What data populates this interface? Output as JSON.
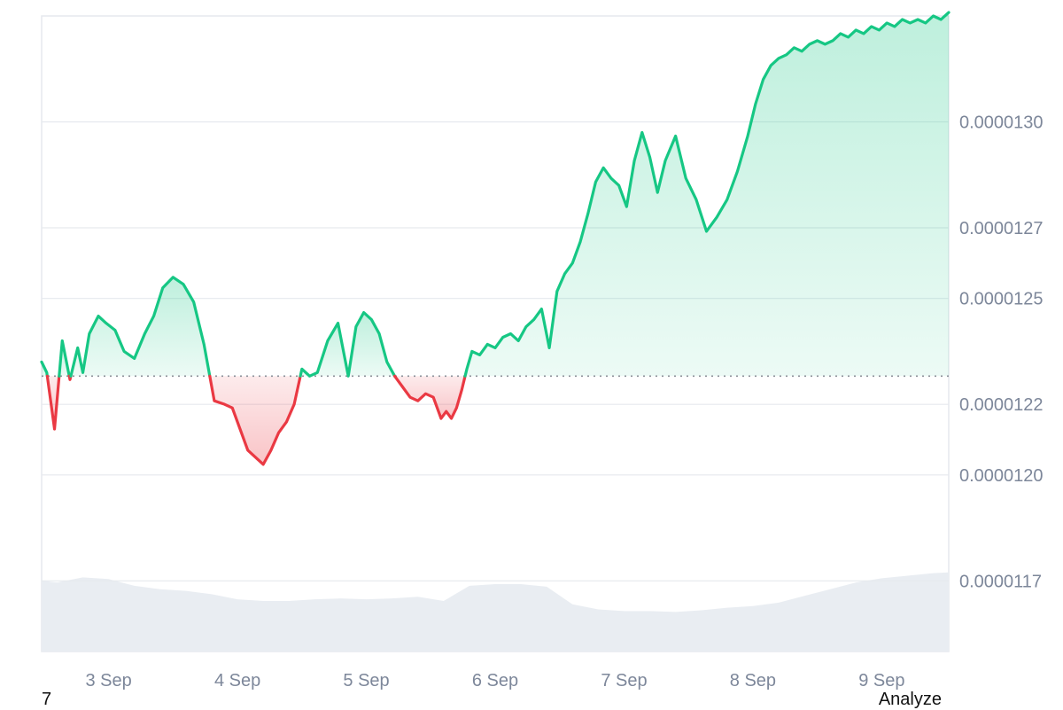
{
  "footer": {
    "left_text": "7",
    "right_text": "Analyze"
  },
  "colors": {
    "up": "#16c784",
    "down": "#ea3943",
    "up_fill": "#16c784",
    "down_fill": "#ea3943",
    "volume": "#e9edf2",
    "grid": "#e6e9ee",
    "baseline": "#8a8f98",
    "axis_text": "#7d879a"
  },
  "chart_data": {
    "type": "line",
    "title": "",
    "xlabel": "",
    "ylabel": "",
    "baseline": 1.228e-05,
    "ylim": [
      1.15e-05,
      1.33e-05
    ],
    "y_ticks": [
      {
        "v": 1.3e-05,
        "label": "0.0000130"
      },
      {
        "v": 1.27e-05,
        "label": "0.0000127"
      },
      {
        "v": 1.25e-05,
        "label": "0.0000125"
      },
      {
        "v": 1.22e-05,
        "label": "0.0000122"
      },
      {
        "v": 1.2e-05,
        "label": "0.0000120"
      },
      {
        "v": 1.17e-05,
        "label": "0.0000117"
      }
    ],
    "x_range": [
      2.48,
      9.52
    ],
    "x_ticks": [
      {
        "v": 3,
        "label": "3 Sep"
      },
      {
        "v": 4,
        "label": "4 Sep"
      },
      {
        "v": 5,
        "label": "5 Sep"
      },
      {
        "v": 6,
        "label": "6 Sep"
      },
      {
        "v": 7,
        "label": "7 Sep"
      },
      {
        "v": 8,
        "label": "8 Sep"
      },
      {
        "v": 9,
        "label": "9 Sep"
      }
    ],
    "series": [
      {
        "x": [
          2.48,
          2.52,
          2.58,
          2.64,
          2.7,
          2.76,
          2.8,
          2.85,
          2.92,
          2.98,
          3.05,
          3.12,
          3.2,
          3.28,
          3.35,
          3.42,
          3.5,
          3.58,
          3.66,
          3.74,
          3.82,
          3.9,
          3.96,
          4.02,
          4.08,
          4.14,
          4.2,
          4.26,
          4.32,
          4.38,
          4.44,
          4.5,
          4.56,
          4.62,
          4.7,
          4.78,
          4.86,
          4.92,
          4.98,
          5.04,
          5.1,
          5.16,
          5.22,
          5.28,
          5.34,
          5.4,
          5.46,
          5.52,
          5.58,
          5.62,
          5.66,
          5.7,
          5.74,
          5.78,
          5.82,
          5.88,
          5.94,
          6.0,
          6.06,
          6.12,
          6.18,
          6.24,
          6.3,
          6.36,
          6.42,
          6.48,
          6.54,
          6.6,
          6.66,
          6.72,
          6.78,
          6.84,
          6.9,
          6.96,
          7.02,
          7.08,
          7.14,
          7.2,
          7.26,
          7.32,
          7.4,
          7.48,
          7.56,
          7.64,
          7.72,
          7.8,
          7.88,
          7.96,
          8.02,
          8.08,
          8.14,
          8.2,
          8.26,
          8.32,
          8.38,
          8.44,
          8.5,
          8.56,
          8.62,
          8.68,
          8.74,
          8.8,
          8.86,
          8.92,
          8.98,
          9.04,
          9.1,
          9.16,
          9.22,
          9.28,
          9.34,
          9.4,
          9.46,
          9.52
        ],
        "y": [
          1.232e-05,
          1.229e-05,
          1.213e-05,
          1.238e-05,
          1.227e-05,
          1.236e-05,
          1.229e-05,
          1.24e-05,
          1.245e-05,
          1.243e-05,
          1.241e-05,
          1.235e-05,
          1.233e-05,
          1.24e-05,
          1.245e-05,
          1.253e-05,
          1.256e-05,
          1.254e-05,
          1.249e-05,
          1.237e-05,
          1.221e-05,
          1.22e-05,
          1.219e-05,
          1.213e-05,
          1.207e-05,
          1.205e-05,
          1.203e-05,
          1.207e-05,
          1.212e-05,
          1.215e-05,
          1.22e-05,
          1.23e-05,
          1.228e-05,
          1.229e-05,
          1.238e-05,
          1.243e-05,
          1.228e-05,
          1.242e-05,
          1.246e-05,
          1.244e-05,
          1.24e-05,
          1.232e-05,
          1.228e-05,
          1.225e-05,
          1.222e-05,
          1.221e-05,
          1.223e-05,
          1.222e-05,
          1.216e-05,
          1.218e-05,
          1.216e-05,
          1.219e-05,
          1.224e-05,
          1.23e-05,
          1.235e-05,
          1.234e-05,
          1.237e-05,
          1.236e-05,
          1.239e-05,
          1.24e-05,
          1.238e-05,
          1.242e-05,
          1.244e-05,
          1.247e-05,
          1.236e-05,
          1.252e-05,
          1.257e-05,
          1.26e-05,
          1.266e-05,
          1.274e-05,
          1.283e-05,
          1.287e-05,
          1.284e-05,
          1.282e-05,
          1.276e-05,
          1.289e-05,
          1.297e-05,
          1.29e-05,
          1.28e-05,
          1.289e-05,
          1.296e-05,
          1.284e-05,
          1.278e-05,
          1.269e-05,
          1.273e-05,
          1.278e-05,
          1.286e-05,
          1.296e-05,
          1.305e-05,
          1.312e-05,
          1.316e-05,
          1.318e-05,
          1.319e-05,
          1.321e-05,
          1.32e-05,
          1.322e-05,
          1.323e-05,
          1.322e-05,
          1.323e-05,
          1.325e-05,
          1.324e-05,
          1.326e-05,
          1.325e-05,
          1.327e-05,
          1.326e-05,
          1.328e-05,
          1.327e-05,
          1.329e-05,
          1.328e-05,
          1.329e-05,
          1.328e-05,
          1.33e-05,
          1.329e-05,
          1.331e-05
        ]
      }
    ],
    "volume": {
      "x": [
        2.48,
        2.6,
        2.8,
        3.0,
        3.2,
        3.4,
        3.6,
        3.8,
        4.0,
        4.2,
        4.4,
        4.6,
        4.8,
        5.0,
        5.2,
        5.4,
        5.6,
        5.8,
        6.0,
        6.2,
        6.4,
        6.6,
        6.8,
        7.0,
        7.2,
        7.4,
        7.6,
        7.8,
        8.0,
        8.2,
        8.4,
        8.6,
        8.8,
        9.0,
        9.2,
        9.4,
        9.52
      ],
      "v": [
        0.84,
        0.82,
        0.88,
        0.86,
        0.78,
        0.74,
        0.72,
        0.68,
        0.62,
        0.6,
        0.6,
        0.62,
        0.63,
        0.62,
        0.63,
        0.65,
        0.6,
        0.78,
        0.8,
        0.8,
        0.77,
        0.56,
        0.5,
        0.48,
        0.48,
        0.47,
        0.49,
        0.52,
        0.54,
        0.58,
        0.66,
        0.74,
        0.82,
        0.87,
        0.9,
        0.93,
        0.94
      ]
    }
  }
}
